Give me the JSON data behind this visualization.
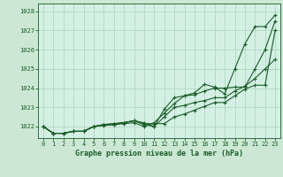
{
  "title": "Graphe pression niveau de la mer (hPa)",
  "background_color": "#cce8d4",
  "plot_bg_color": "#d4f0e4",
  "grid_color": "#b0d8c0",
  "line_color": "#1a5c28",
  "xlim": [
    -0.5,
    23.5
  ],
  "ylim": [
    1021.4,
    1028.4
  ],
  "yticks": [
    1022,
    1023,
    1024,
    1025,
    1026,
    1027,
    1028
  ],
  "xticks": [
    0,
    1,
    2,
    3,
    4,
    5,
    6,
    7,
    8,
    9,
    10,
    11,
    12,
    13,
    14,
    15,
    16,
    17,
    18,
    19,
    20,
    21,
    22,
    23
  ],
  "series": [
    [
      1022.0,
      1021.65,
      1021.65,
      1021.75,
      1021.75,
      1022.0,
      1022.05,
      1022.1,
      1022.15,
      1022.2,
      1022.0,
      1022.2,
      1022.7,
      1023.2,
      1023.6,
      1023.75,
      1024.2,
      1024.05,
      1023.7,
      1025.0,
      1026.3,
      1027.2,
      1027.2,
      1027.8
    ],
    [
      1022.0,
      1021.65,
      1021.65,
      1021.75,
      1021.75,
      1022.0,
      1022.1,
      1022.1,
      1022.2,
      1022.3,
      1022.2,
      1022.0,
      1022.9,
      1023.5,
      1023.6,
      1023.65,
      1023.85,
      1024.0,
      1024.0,
      1024.05,
      1024.05,
      1025.0,
      1026.0,
      1027.5
    ],
    [
      1022.0,
      1021.65,
      1021.65,
      1021.75,
      1021.75,
      1022.0,
      1022.1,
      1022.15,
      1022.2,
      1022.3,
      1022.15,
      1022.15,
      1022.15,
      1022.5,
      1022.65,
      1022.85,
      1023.05,
      1023.25,
      1023.25,
      1023.6,
      1023.95,
      1024.15,
      1024.15,
      1027.0
    ],
    [
      1022.0,
      1021.65,
      1021.65,
      1021.75,
      1021.75,
      1022.0,
      1022.1,
      1022.15,
      1022.2,
      1022.3,
      1022.1,
      1022.0,
      1022.5,
      1023.0,
      1023.1,
      1023.25,
      1023.35,
      1023.5,
      1023.5,
      1023.85,
      1024.1,
      1024.5,
      1025.0,
      1025.5
    ]
  ]
}
